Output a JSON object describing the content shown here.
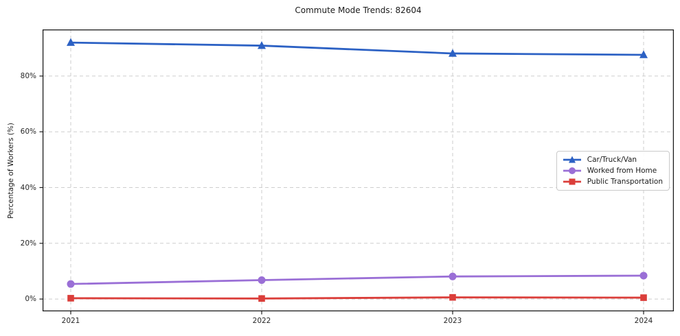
{
  "chart_data": {
    "type": "line",
    "title": "Commute Mode Trends: 82604",
    "xlabel": "",
    "ylabel": "Percentage of Workers (%)",
    "x": [
      "2021",
      "2022",
      "2023",
      "2024"
    ],
    "series": [
      {
        "name": "Car/Truck/Van",
        "color": "#2c61c4",
        "marker": "triangle",
        "values": [
          92.0,
          90.9,
          88.1,
          87.6
        ]
      },
      {
        "name": "Worked from Home",
        "color": "#9a6fd6",
        "marker": "circle",
        "values": [
          5.4,
          6.8,
          8.1,
          8.4
        ]
      },
      {
        "name": "Public Transportation",
        "color": "#db3e3a",
        "marker": "square",
        "values": [
          0.3,
          0.2,
          0.6,
          0.5
        ]
      }
    ],
    "yticks": [
      0,
      20,
      40,
      60,
      80
    ],
    "ytick_labels": [
      "0%",
      "20%",
      "40%",
      "60%",
      "80%"
    ],
    "ylim": [
      -4.4,
      96.7
    ],
    "grid": true,
    "grid_style": "dashed",
    "legend_position": "center right",
    "colors": {
      "grid": "#cdcdcd",
      "spine": "#1a1a1a",
      "text": "#262626",
      "background": "#ffffff"
    }
  }
}
